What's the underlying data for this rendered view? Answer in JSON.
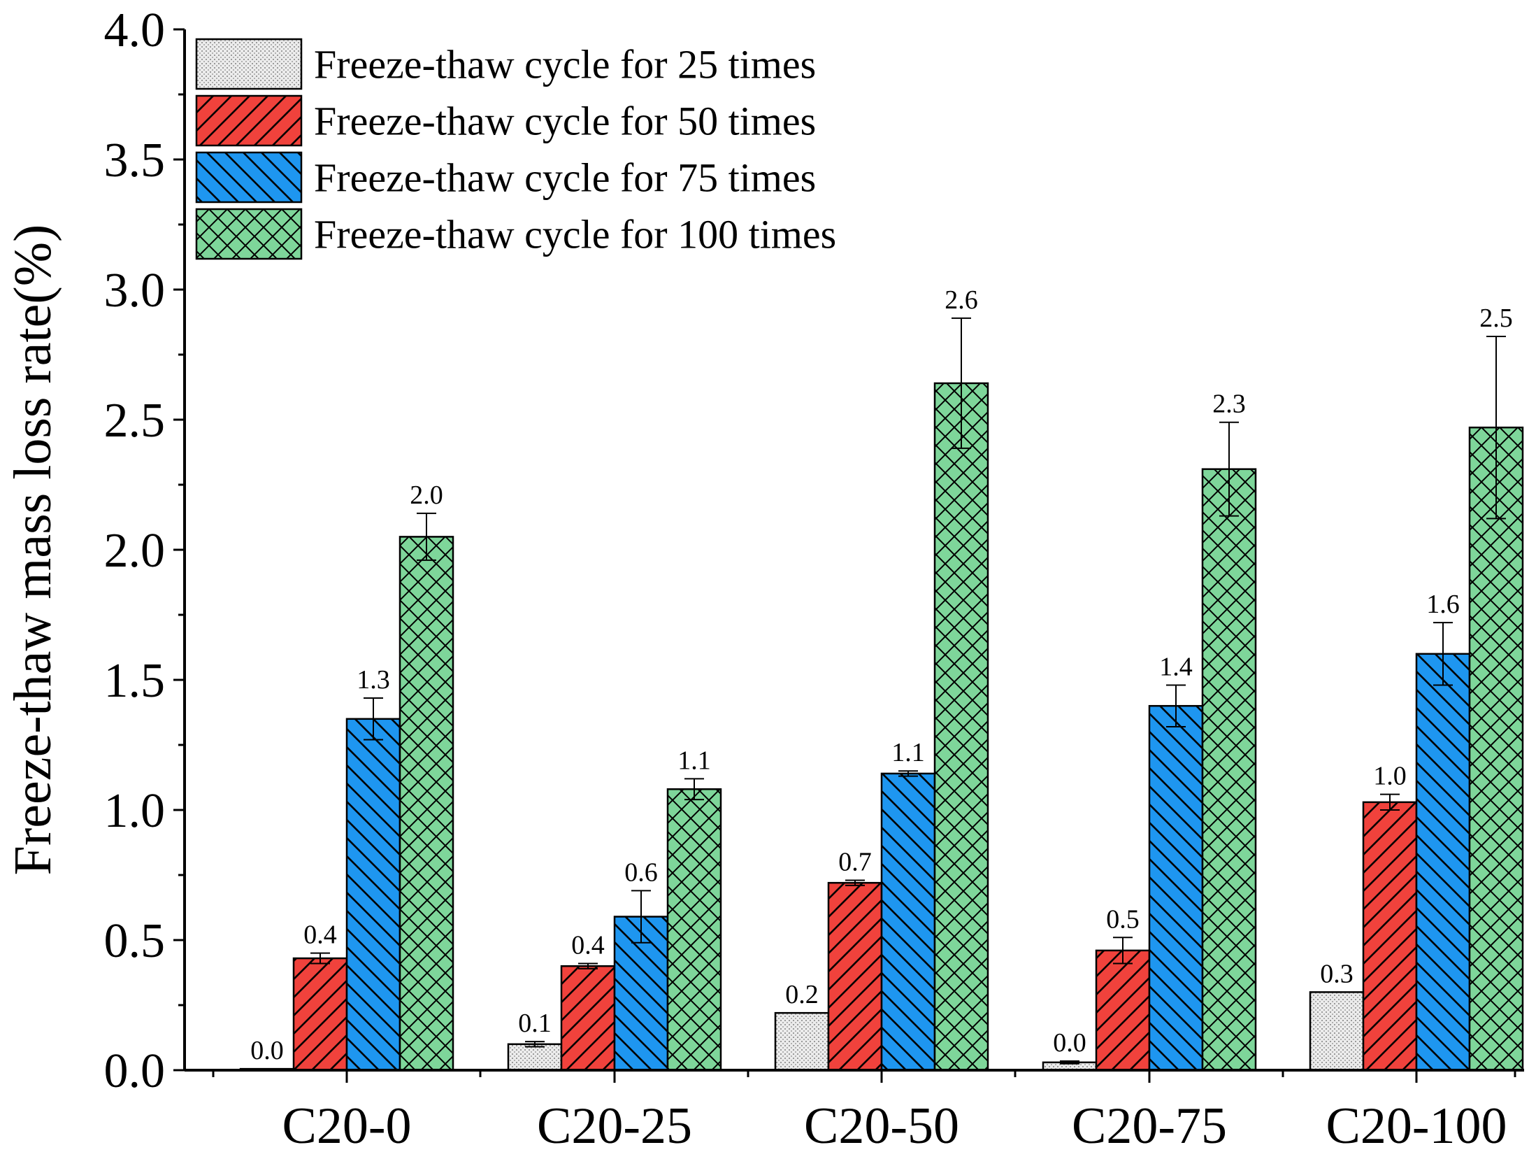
{
  "chart_data": {
    "type": "bar",
    "title": "",
    "xlabel": "",
    "ylabel": "Freeze-thaw mass loss rate(%)",
    "ylim": [
      0,
      4.0
    ],
    "yticks": [
      "0.0",
      "0.5",
      "1.0",
      "1.5",
      "2.0",
      "2.5",
      "3.0",
      "3.5",
      "4.0"
    ],
    "categories": [
      "C20-0",
      "C20-25",
      "C20-50",
      "C20-75",
      "C20-100"
    ],
    "series": [
      {
        "name": "Freeze-thaw cycle for 25 times",
        "color": "#dcdcdc",
        "pattern": "dots",
        "values": [
          0.005,
          0.1,
          0.22,
          0.03,
          0.3
        ],
        "errors": [
          0.0,
          0.01,
          0.0,
          0.005,
          0.0
        ],
        "labels": [
          "0.0",
          "0.1",
          "0.2",
          "0.0",
          "0.3"
        ]
      },
      {
        "name": "Freeze-thaw cycle for 50 times",
        "color": "#f0423c",
        "pattern": "forward-diagonal",
        "values": [
          0.43,
          0.4,
          0.72,
          0.46,
          1.03
        ],
        "errors": [
          0.02,
          0.01,
          0.01,
          0.05,
          0.03
        ],
        "labels": [
          "0.4",
          "0.4",
          "0.7",
          "0.5",
          "1.0"
        ]
      },
      {
        "name": "Freeze-thaw cycle for 75 times",
        "color": "#1e96f0",
        "pattern": "back-diagonal",
        "values": [
          1.35,
          0.59,
          1.14,
          1.4,
          1.6
        ],
        "errors": [
          0.08,
          0.1,
          0.01,
          0.08,
          0.12
        ],
        "labels": [
          "1.3",
          "0.6",
          "1.1",
          "1.4",
          "1.6"
        ]
      },
      {
        "name": "Freeze-thaw cycle for 100 times",
        "color": "#7ed69a",
        "pattern": "crosshatch",
        "values": [
          2.05,
          1.08,
          2.64,
          2.31,
          2.47
        ],
        "errors": [
          0.09,
          0.04,
          0.25,
          0.18,
          0.35
        ],
        "labels": [
          "2.0",
          "1.1",
          "2.6",
          "2.3",
          "2.5"
        ]
      }
    ],
    "legend_position": "top-left",
    "grid": false
  }
}
